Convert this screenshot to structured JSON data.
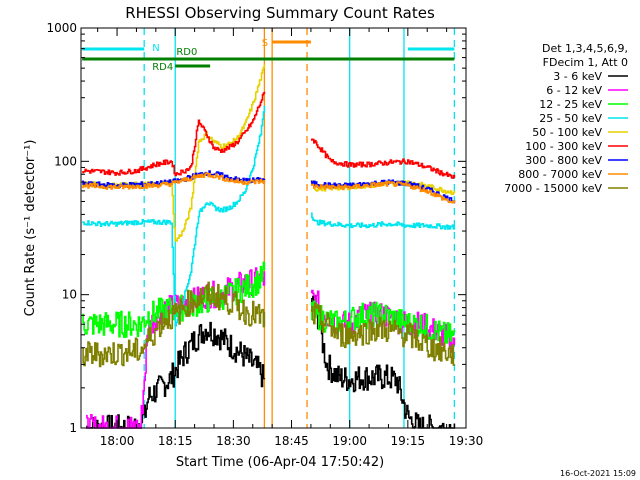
{
  "chart_data": {
    "type": "line",
    "title": "RHESSI Observing Summary Count Rates",
    "xlabel": "Start Time (06-Apr-04 17:50:42)",
    "ylabel": "Count Rate (s⁻¹ detector⁻¹)",
    "y_scale": "log",
    "ylim": [
      1,
      1000
    ],
    "xlim": [
      "17:50:42",
      "19:30"
    ],
    "x_ticks": [
      "18:00",
      "18:15",
      "18:30",
      "18:45",
      "19:00",
      "19:15",
      "19:30"
    ],
    "y_ticks": [
      "1",
      "10",
      "100",
      "1000"
    ],
    "legend": {
      "placement": "right",
      "header": [
        "Det 1,3,4,5,6,9,",
        "FDecim 1, Att 0"
      ]
    },
    "footer_date": "16-Oct-2021 15:09",
    "flags": [
      {
        "label": "N",
        "color": "#00e5ee",
        "segments": [
          [
            "17:51",
            "18:07"
          ],
          [
            "19:15",
            "19:27"
          ]
        ]
      },
      {
        "label": "S",
        "color": "#ff8c00",
        "segments": [
          [
            "18:40",
            "18:50"
          ]
        ]
      },
      {
        "label": "RD0",
        "color": "#007f00",
        "segments": [
          [
            "17:51",
            "19:00"
          ],
          [
            "19:00",
            "19:27"
          ]
        ]
      },
      {
        "label": "RD4",
        "color": "#007f00",
        "segments": [
          [
            "18:15",
            "18:24"
          ]
        ]
      }
    ],
    "vertical_markers": [
      {
        "color": "#00e5ee",
        "style": "dashed",
        "x": "18:07"
      },
      {
        "color": "#00e5ee",
        "style": "solid",
        "x": "18:15"
      },
      {
        "color": "#ff8c00",
        "style": "solid",
        "x": "18:38"
      },
      {
        "color": "#ff8c00",
        "style": "solid",
        "x": "18:40"
      },
      {
        "color": "#ff8c00",
        "style": "dashed",
        "x": "18:49"
      },
      {
        "color": "#00e5ee",
        "style": "solid",
        "x": "19:00"
      },
      {
        "color": "#00e5ee",
        "style": "solid",
        "x": "19:14"
      },
      {
        "color": "#00e5ee",
        "style": "dashed",
        "x": "19:27"
      }
    ],
    "gap": [
      "18:38",
      "18:50"
    ],
    "series": [
      {
        "name": "3 - 6 keV",
        "color": "#000000",
        "x": [
          "17:52",
          "17:56",
          "18:00",
          "18:04",
          "18:07",
          "18:08",
          "18:11",
          "18:14",
          "18:17",
          "18:20",
          "18:23",
          "18:26",
          "18:29",
          "18:32",
          "18:35",
          "18:37",
          "18:38",
          "18:51",
          "18:54",
          "18:57",
          "19:00",
          "19:03",
          "19:06",
          "19:09",
          "19:12",
          "19:15",
          "19:18",
          "19:21",
          "19:24",
          "19:27"
        ],
        "values": [
          1,
          1,
          1,
          1,
          1.2,
          1.7,
          2.0,
          2.4,
          3.5,
          4.6,
          5.6,
          5.0,
          4.2,
          3.6,
          3.0,
          2.6,
          2.2,
          9,
          3,
          2.4,
          2.3,
          2.4,
          2.4,
          2.4,
          2.3,
          1.2,
          1,
          1,
          1,
          1
        ]
      },
      {
        "name": "6 - 12 keV",
        "color": "#ff00ff",
        "x": [
          "17:52",
          "17:56",
          "18:00",
          "18:04",
          "18:06",
          "18:08",
          "18:11",
          "18:14",
          "18:17",
          "18:20",
          "18:23",
          "18:26",
          "18:29",
          "18:32",
          "18:35",
          "18:37",
          "18:38",
          "18:51",
          "18:54",
          "18:57",
          "19:00",
          "19:03",
          "19:06",
          "19:09",
          "19:12",
          "19:15",
          "19:18",
          "19:21",
          "19:24",
          "19:27"
        ],
        "values": [
          1,
          1,
          1,
          1,
          1,
          5.6,
          7.5,
          8.0,
          8.5,
          9.0,
          10,
          10,
          11,
          12,
          12.5,
          13,
          13,
          9,
          7,
          6,
          6,
          7,
          7,
          7,
          6.5,
          6,
          6,
          5.5,
          5,
          4.5
        ]
      },
      {
        "name": "12 - 25 keV",
        "color": "#00ff00",
        "x": [
          "17:51",
          "17:54",
          "17:58",
          "18:02",
          "18:06",
          "18:08",
          "18:11",
          "18:14",
          "18:17",
          "18:20",
          "18:23",
          "18:26",
          "18:29",
          "18:32",
          "18:35",
          "18:37",
          "18:38",
          "18:51",
          "18:54",
          "18:57",
          "19:00",
          "19:03",
          "19:06",
          "19:09",
          "19:12",
          "19:15",
          "19:18",
          "19:21",
          "19:24",
          "19:27"
        ],
        "values": [
          6,
          6,
          6,
          6,
          6,
          7,
          7.5,
          7.8,
          8,
          8.5,
          9,
          9.5,
          10,
          11,
          12,
          13,
          15,
          7,
          6.5,
          6,
          6.5,
          7,
          7,
          7,
          6.5,
          6,
          6,
          5.5,
          5,
          4.8
        ]
      },
      {
        "name": "25 - 50 keV",
        "color": "#00e5ee",
        "x": [
          "17:51",
          "17:55",
          "18:00",
          "18:05",
          "18:10",
          "18:14",
          "18:15",
          "18:17",
          "18:19",
          "18:21",
          "18:23",
          "18:25",
          "18:27",
          "18:29",
          "18:31",
          "18:33",
          "18:35",
          "18:37",
          "18:38",
          "18:51",
          "18:55",
          "19:00",
          "19:05",
          "19:10",
          "19:15",
          "19:20",
          "19:27"
        ],
        "values": [
          35,
          34,
          34,
          35,
          35,
          35,
          6,
          9,
          15,
          40,
          50,
          45,
          43,
          45,
          50,
          60,
          90,
          160,
          270,
          35,
          34,
          33,
          33,
          34,
          33,
          33,
          32
        ]
      },
      {
        "name": "50 - 100 keV",
        "color": "#e6d200",
        "x": [
          "17:51",
          "17:55",
          "18:00",
          "18:05",
          "18:10",
          "18:14",
          "18:15",
          "18:17",
          "18:19",
          "18:21",
          "18:23",
          "18:25",
          "18:27",
          "18:29",
          "18:31",
          "18:33",
          "18:35",
          "18:37",
          "18:38",
          "18:51",
          "18:55",
          "19:00",
          "19:05",
          "19:10",
          "19:15",
          "19:20",
          "19:27"
        ],
        "values": [
          68,
          67,
          66,
          67,
          68,
          70,
          25,
          30,
          45,
          140,
          160,
          140,
          130,
          135,
          150,
          190,
          270,
          420,
          520,
          62,
          63,
          64,
          66,
          68,
          70,
          65,
          58
        ]
      },
      {
        "name": "100 - 300 keV",
        "color": "#ff0000",
        "x": [
          "17:51",
          "17:55",
          "18:00",
          "18:05",
          "18:10",
          "18:14",
          "18:15",
          "18:17",
          "18:19",
          "18:21",
          "18:23",
          "18:25",
          "18:27",
          "18:29",
          "18:31",
          "18:33",
          "18:35",
          "18:37",
          "18:38",
          "18:51",
          "18:55",
          "19:00",
          "19:05",
          "19:10",
          "19:15",
          "19:20",
          "19:27"
        ],
        "values": [
          85,
          84,
          82,
          85,
          95,
          100,
          80,
          84,
          90,
          200,
          160,
          125,
          120,
          128,
          140,
          165,
          200,
          280,
          330,
          140,
          100,
          94,
          95,
          98,
          100,
          90,
          75
        ]
      },
      {
        "name": "300 - 800 keV",
        "color": "#0000ff",
        "x": [
          "17:51",
          "17:55",
          "18:00",
          "18:05",
          "18:10",
          "18:14",
          "18:17",
          "18:20",
          "18:23",
          "18:26",
          "18:29",
          "18:32",
          "18:35",
          "18:38",
          "18:51",
          "18:55",
          "19:00",
          "19:05",
          "19:10",
          "19:15",
          "19:20",
          "19:27"
        ],
        "values": [
          68,
          67,
          66,
          67,
          68,
          70,
          73,
          78,
          82,
          80,
          75,
          72,
          72,
          73,
          68,
          66,
          66,
          68,
          70,
          68,
          62,
          50
        ]
      },
      {
        "name": "800 - 7000 keV",
        "color": "#ff8c00",
        "x": [
          "17:51",
          "17:55",
          "18:00",
          "18:05",
          "18:10",
          "18:14",
          "18:17",
          "18:20",
          "18:23",
          "18:26",
          "18:29",
          "18:32",
          "18:35",
          "18:38",
          "18:51",
          "18:55",
          "19:00",
          "19:05",
          "19:10",
          "19:15",
          "19:20",
          "19:27"
        ],
        "values": [
          66,
          65,
          64,
          65,
          66,
          68,
          72,
          76,
          80,
          77,
          72,
          70,
          70,
          71,
          65,
          64,
          64,
          66,
          68,
          66,
          60,
          48
        ]
      },
      {
        "name": "7000 - 15000 keV",
        "color": "#808000",
        "x": [
          "17:51",
          "17:54",
          "17:58",
          "18:02",
          "18:06",
          "18:09",
          "18:12",
          "18:15",
          "18:18",
          "18:21",
          "18:24",
          "18:27",
          "18:30",
          "18:33",
          "18:36",
          "18:38",
          "18:51",
          "18:54",
          "18:57",
          "19:00",
          "19:03",
          "19:06",
          "19:09",
          "19:12",
          "19:15",
          "19:18",
          "19:21",
          "19:24",
          "19:27"
        ],
        "values": [
          3.5,
          3.6,
          3.6,
          3.7,
          3.8,
          5,
          6.5,
          7,
          8.5,
          9.5,
          10,
          9.5,
          8.5,
          7.5,
          7,
          6.5,
          7,
          6,
          5,
          5,
          5.2,
          5.5,
          5.5,
          5.2,
          5,
          4.5,
          4,
          3.8,
          3.5
        ]
      }
    ]
  }
}
